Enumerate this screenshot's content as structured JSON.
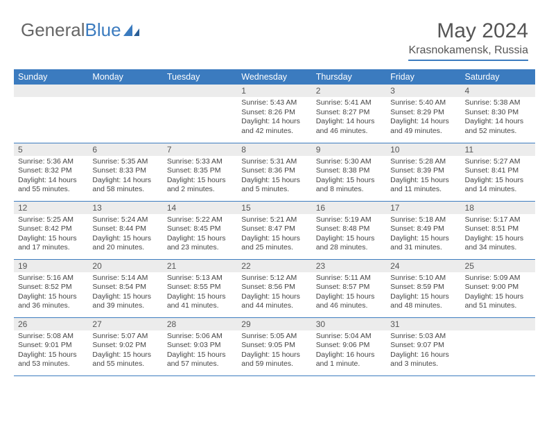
{
  "brand": {
    "part1": "General",
    "part2": "Blue"
  },
  "title": "May 2024",
  "location": "Krasnokamensk, Russia",
  "colors": {
    "header_bg": "#3b7bbf",
    "header_text": "#ffffff",
    "daynum_bg": "#ececec",
    "text": "#444444",
    "rule": "#3b7bbf"
  },
  "weekdays": [
    "Sunday",
    "Monday",
    "Tuesday",
    "Wednesday",
    "Thursday",
    "Friday",
    "Saturday"
  ],
  "weeks": [
    [
      {
        "n": "",
        "sr": "",
        "ss": "",
        "dl": ""
      },
      {
        "n": "",
        "sr": "",
        "ss": "",
        "dl": ""
      },
      {
        "n": "",
        "sr": "",
        "ss": "",
        "dl": ""
      },
      {
        "n": "1",
        "sr": "Sunrise: 5:43 AM",
        "ss": "Sunset: 8:26 PM",
        "dl": "Daylight: 14 hours and 42 minutes."
      },
      {
        "n": "2",
        "sr": "Sunrise: 5:41 AM",
        "ss": "Sunset: 8:27 PM",
        "dl": "Daylight: 14 hours and 46 minutes."
      },
      {
        "n": "3",
        "sr": "Sunrise: 5:40 AM",
        "ss": "Sunset: 8:29 PM",
        "dl": "Daylight: 14 hours and 49 minutes."
      },
      {
        "n": "4",
        "sr": "Sunrise: 5:38 AM",
        "ss": "Sunset: 8:30 PM",
        "dl": "Daylight: 14 hours and 52 minutes."
      }
    ],
    [
      {
        "n": "5",
        "sr": "Sunrise: 5:36 AM",
        "ss": "Sunset: 8:32 PM",
        "dl": "Daylight: 14 hours and 55 minutes."
      },
      {
        "n": "6",
        "sr": "Sunrise: 5:35 AM",
        "ss": "Sunset: 8:33 PM",
        "dl": "Daylight: 14 hours and 58 minutes."
      },
      {
        "n": "7",
        "sr": "Sunrise: 5:33 AM",
        "ss": "Sunset: 8:35 PM",
        "dl": "Daylight: 15 hours and 2 minutes."
      },
      {
        "n": "8",
        "sr": "Sunrise: 5:31 AM",
        "ss": "Sunset: 8:36 PM",
        "dl": "Daylight: 15 hours and 5 minutes."
      },
      {
        "n": "9",
        "sr": "Sunrise: 5:30 AM",
        "ss": "Sunset: 8:38 PM",
        "dl": "Daylight: 15 hours and 8 minutes."
      },
      {
        "n": "10",
        "sr": "Sunrise: 5:28 AM",
        "ss": "Sunset: 8:39 PM",
        "dl": "Daylight: 15 hours and 11 minutes."
      },
      {
        "n": "11",
        "sr": "Sunrise: 5:27 AM",
        "ss": "Sunset: 8:41 PM",
        "dl": "Daylight: 15 hours and 14 minutes."
      }
    ],
    [
      {
        "n": "12",
        "sr": "Sunrise: 5:25 AM",
        "ss": "Sunset: 8:42 PM",
        "dl": "Daylight: 15 hours and 17 minutes."
      },
      {
        "n": "13",
        "sr": "Sunrise: 5:24 AM",
        "ss": "Sunset: 8:44 PM",
        "dl": "Daylight: 15 hours and 20 minutes."
      },
      {
        "n": "14",
        "sr": "Sunrise: 5:22 AM",
        "ss": "Sunset: 8:45 PM",
        "dl": "Daylight: 15 hours and 23 minutes."
      },
      {
        "n": "15",
        "sr": "Sunrise: 5:21 AM",
        "ss": "Sunset: 8:47 PM",
        "dl": "Daylight: 15 hours and 25 minutes."
      },
      {
        "n": "16",
        "sr": "Sunrise: 5:19 AM",
        "ss": "Sunset: 8:48 PM",
        "dl": "Daylight: 15 hours and 28 minutes."
      },
      {
        "n": "17",
        "sr": "Sunrise: 5:18 AM",
        "ss": "Sunset: 8:49 PM",
        "dl": "Daylight: 15 hours and 31 minutes."
      },
      {
        "n": "18",
        "sr": "Sunrise: 5:17 AM",
        "ss": "Sunset: 8:51 PM",
        "dl": "Daylight: 15 hours and 34 minutes."
      }
    ],
    [
      {
        "n": "19",
        "sr": "Sunrise: 5:16 AM",
        "ss": "Sunset: 8:52 PM",
        "dl": "Daylight: 15 hours and 36 minutes."
      },
      {
        "n": "20",
        "sr": "Sunrise: 5:14 AM",
        "ss": "Sunset: 8:54 PM",
        "dl": "Daylight: 15 hours and 39 minutes."
      },
      {
        "n": "21",
        "sr": "Sunrise: 5:13 AM",
        "ss": "Sunset: 8:55 PM",
        "dl": "Daylight: 15 hours and 41 minutes."
      },
      {
        "n": "22",
        "sr": "Sunrise: 5:12 AM",
        "ss": "Sunset: 8:56 PM",
        "dl": "Daylight: 15 hours and 44 minutes."
      },
      {
        "n": "23",
        "sr": "Sunrise: 5:11 AM",
        "ss": "Sunset: 8:57 PM",
        "dl": "Daylight: 15 hours and 46 minutes."
      },
      {
        "n": "24",
        "sr": "Sunrise: 5:10 AM",
        "ss": "Sunset: 8:59 PM",
        "dl": "Daylight: 15 hours and 48 minutes."
      },
      {
        "n": "25",
        "sr": "Sunrise: 5:09 AM",
        "ss": "Sunset: 9:00 PM",
        "dl": "Daylight: 15 hours and 51 minutes."
      }
    ],
    [
      {
        "n": "26",
        "sr": "Sunrise: 5:08 AM",
        "ss": "Sunset: 9:01 PM",
        "dl": "Daylight: 15 hours and 53 minutes."
      },
      {
        "n": "27",
        "sr": "Sunrise: 5:07 AM",
        "ss": "Sunset: 9:02 PM",
        "dl": "Daylight: 15 hours and 55 minutes."
      },
      {
        "n": "28",
        "sr": "Sunrise: 5:06 AM",
        "ss": "Sunset: 9:03 PM",
        "dl": "Daylight: 15 hours and 57 minutes."
      },
      {
        "n": "29",
        "sr": "Sunrise: 5:05 AM",
        "ss": "Sunset: 9:05 PM",
        "dl": "Daylight: 15 hours and 59 minutes."
      },
      {
        "n": "30",
        "sr": "Sunrise: 5:04 AM",
        "ss": "Sunset: 9:06 PM",
        "dl": "Daylight: 16 hours and 1 minute."
      },
      {
        "n": "31",
        "sr": "Sunrise: 5:03 AM",
        "ss": "Sunset: 9:07 PM",
        "dl": "Daylight: 16 hours and 3 minutes."
      },
      {
        "n": "",
        "sr": "",
        "ss": "",
        "dl": ""
      }
    ]
  ]
}
